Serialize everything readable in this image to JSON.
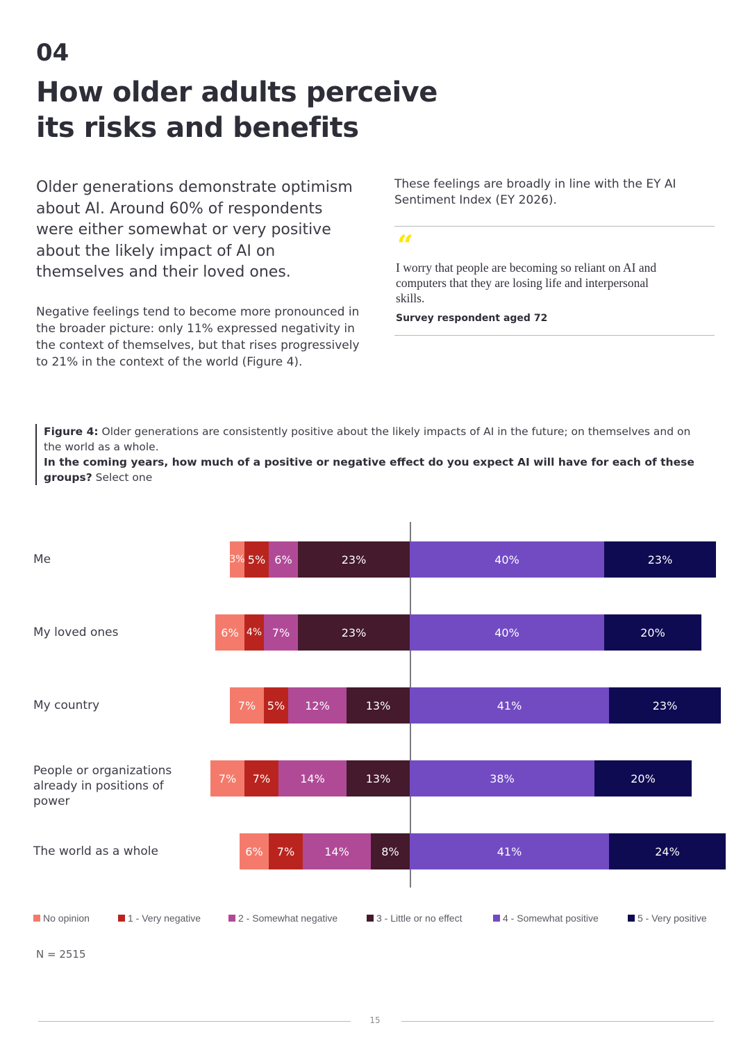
{
  "header": {
    "section_number": "04",
    "title": "How older adults perceive its risks and benefits"
  },
  "left_column": {
    "lead": "Older generations demonstrate optimism about AI. Around 60% of respondents were either somewhat or very positive about the likely impact of AI on themselves and their loved ones.",
    "body": "Negative feelings tend to become more pronounced in the broader picture: only 11% expressed negativity in the context of themselves, but that rises progressively to 21% in the context of the world (Figure 4)."
  },
  "right_column": {
    "intro": "These feelings are broadly in line with the EY AI Sentiment Index (EY 2026).",
    "quote_mark": "“",
    "quote": "I worry that people are becoming so reliant on AI and computers that they are losing life and interpersonal skills.",
    "attribution": "Survey respondent aged 72"
  },
  "figure": {
    "label": "Figure 4:",
    "caption": " Older generations are consistently positive about the likely impacts of AI in the future; on themselves and on the world as a whole.",
    "question": "In the coming years, how much of a positive or negative effect do you expect AI will have for each of these groups?",
    "question_suffix": " Select one"
  },
  "chart_data": {
    "type": "bar",
    "orientation": "horizontal-diverging-stacked",
    "categories": [
      "Me",
      "My loved ones",
      "My country",
      "People or organizations already in positions of power",
      "The world as a whole"
    ],
    "series": [
      {
        "name": "No opinion",
        "color": "#f47b6b",
        "values": [
          3,
          6,
          7,
          7,
          6
        ]
      },
      {
        "name": "1 - Very negative",
        "color": "#b9251e",
        "values": [
          5,
          4,
          5,
          7,
          7
        ]
      },
      {
        "name": "2 - Somewhat negative",
        "color": "#b04a97",
        "values": [
          6,
          7,
          12,
          14,
          14
        ]
      },
      {
        "name": "3 - Little or no effect",
        "color": "#441a2c",
        "values": [
          23,
          23,
          13,
          13,
          8
        ]
      },
      {
        "name": "4 - Somewhat positive",
        "color": "#724bc3",
        "values": [
          40,
          40,
          41,
          38,
          41
        ]
      },
      {
        "name": "5 - Very positive",
        "color": "#0f0b52",
        "values": [
          23,
          20,
          23,
          20,
          24
        ]
      }
    ],
    "value_suffix": "%",
    "note": "N = 2515"
  },
  "footer": {
    "page_number": "15"
  }
}
